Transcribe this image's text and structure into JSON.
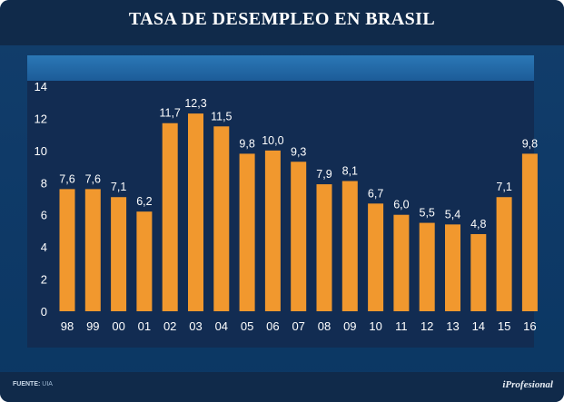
{
  "header": {
    "title": "TASA DE DESEMPLEO EN BRASIL"
  },
  "footer": {
    "source_label": "FUENTE:",
    "source_value": "UIA",
    "logo": "iProfesional"
  },
  "colors": {
    "bar": "#f1982e",
    "panel": "#122c52",
    "text": "#ffffff"
  },
  "chart_data": {
    "type": "bar",
    "title": "TASA DE DESEMPLEO EN BRASIL",
    "xlabel": "",
    "ylabel": "",
    "ylim": [
      0,
      14
    ],
    "yticks": [
      "0",
      "2",
      "4",
      "6",
      "8",
      "10",
      "12",
      "14"
    ],
    "categories": [
      "98",
      "99",
      "00",
      "01",
      "02",
      "03",
      "04",
      "05",
      "06",
      "07",
      "08",
      "09",
      "10",
      "11",
      "12",
      "13",
      "14",
      "15",
      "16"
    ],
    "values": [
      7.6,
      7.6,
      7.1,
      6.2,
      11.7,
      12.3,
      11.5,
      9.8,
      10.0,
      9.3,
      7.9,
      8.1,
      6.7,
      6.0,
      5.5,
      5.4,
      4.8,
      7.1,
      9.8
    ],
    "value_labels": [
      "7,6",
      "7,6",
      "7,1",
      "6,2",
      "11,7",
      "12,3",
      "11,5",
      "9,8",
      "10,0",
      "9,3",
      "7,9",
      "8,1",
      "6,7",
      "6,0",
      "5,5",
      "5,4",
      "4,8",
      "7,1",
      "9,8"
    ]
  }
}
